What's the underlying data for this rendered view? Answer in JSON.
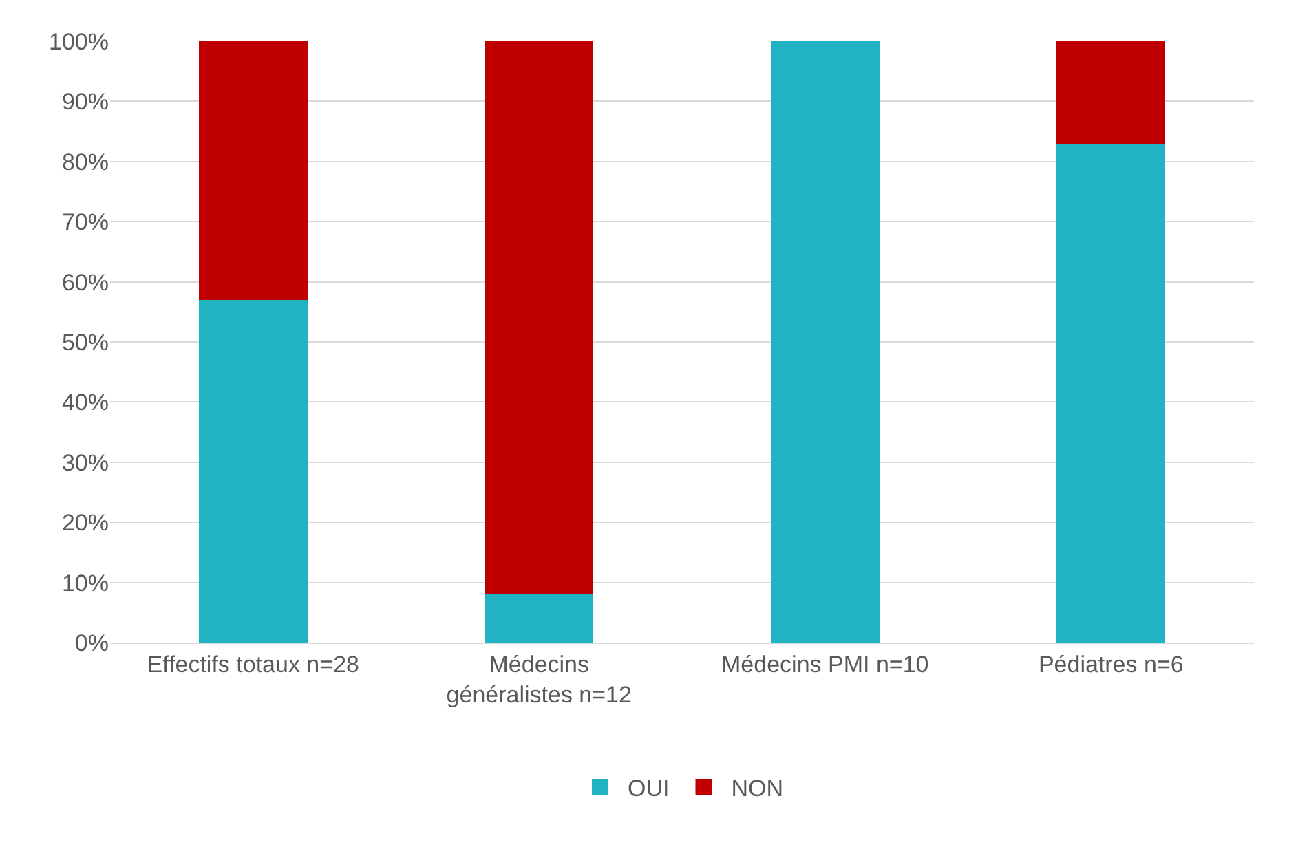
{
  "chart_data": {
    "type": "bar",
    "stacked": true,
    "categories": [
      "Effectifs totaux n=28",
      "Médecins généralistes n=12",
      "Médecins PMI n=10",
      "Pédiatres n=6"
    ],
    "series": [
      {
        "name": "OUI",
        "color": "#21b3c3",
        "values": [
          57,
          8,
          100,
          83
        ]
      },
      {
        "name": "NON",
        "color": "#c00000",
        "values": [
          43,
          92,
          0,
          17
        ]
      }
    ],
    "ylim": [
      0,
      100
    ],
    "yticks": [
      {
        "value": 0,
        "label": "0%"
      },
      {
        "value": 10,
        "label": "10%"
      },
      {
        "value": 20,
        "label": "20%"
      },
      {
        "value": 30,
        "label": "30%"
      },
      {
        "value": 40,
        "label": "40%"
      },
      {
        "value": 50,
        "label": "50%"
      },
      {
        "value": 60,
        "label": "60%"
      },
      {
        "value": 70,
        "label": "70%"
      },
      {
        "value": 80,
        "label": "80%"
      },
      {
        "value": 90,
        "label": "90%"
      },
      {
        "value": 100,
        "label": "100%"
      }
    ],
    "grid": "y",
    "legend": "bottom"
  }
}
